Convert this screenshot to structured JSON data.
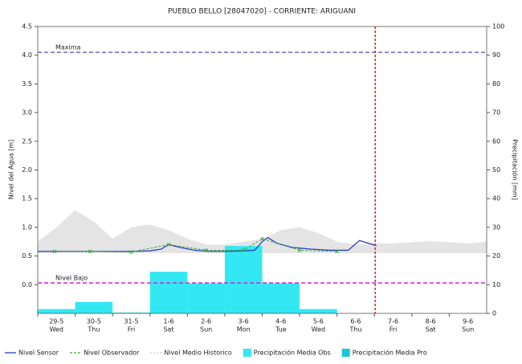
{
  "chart_data": {
    "type": "hydrograph",
    "title": "PUEBLO BELLO [28047020] - CORRIENTE: ARIGUANI",
    "y_label": "Nivel del Agua [m]",
    "y2_label": "Precipitación [mm]",
    "categories": [
      "29-5",
      "30-5",
      "31-5",
      "1-6",
      "2-6",
      "3-6",
      "4-6",
      "5-6",
      "6-6",
      "7-6",
      "8-6",
      "9-6"
    ],
    "weekdays": [
      "Wed",
      "Thu",
      "Fri",
      "Sat",
      "Sun",
      "Mon",
      "Tue",
      "Wed",
      "Thu",
      "Fri",
      "Sat",
      "Sun"
    ],
    "xlim": [
      0,
      12
    ],
    "ylim": [
      -0.5,
      4.5
    ],
    "yticks": [
      {
        "value": 0,
        "label": "0.0"
      },
      {
        "value": 0.5,
        "label": "0.5"
      },
      {
        "value": 1,
        "label": "1.0"
      },
      {
        "value": 1.5,
        "label": "1.5"
      },
      {
        "value": 2,
        "label": "2.0"
      },
      {
        "value": 2.5,
        "label": "2.5"
      },
      {
        "value": 3,
        "label": "3.0"
      },
      {
        "value": 3.5,
        "label": "3.5"
      },
      {
        "value": 4,
        "label": "4.0"
      },
      {
        "value": 4.5,
        "label": "4.5"
      }
    ],
    "y2lim": [
      0,
      100
    ],
    "y2ticks": [
      0,
      10,
      20,
      30,
      40,
      50,
      60,
      70,
      80,
      90,
      100
    ],
    "reference_lines": [
      {
        "label": "Maxima",
        "value": 4.05,
        "color": "#7a62c8"
      },
      {
        "label": "Nivel Bajo",
        "value": 0.03,
        "color": "#d61fd6"
      }
    ],
    "now_line": {
      "x": 9.02,
      "color": "#e02020"
    },
    "series": [
      {
        "name": "Nivel Sensor",
        "kind": "line",
        "color": "#2b3fc4",
        "x": [
          0,
          0.5,
          1,
          1.5,
          2,
          2.5,
          3,
          3.3,
          3.5,
          3.8,
          4.2,
          4.6,
          5,
          5.5,
          5.8,
          6.0,
          6.15,
          6.4,
          6.8,
          7.3,
          7.8,
          8.3,
          8.6,
          9.05
        ],
        "values": [
          0.58,
          0.58,
          0.58,
          0.58,
          0.58,
          0.58,
          0.59,
          0.62,
          0.7,
          0.65,
          0.6,
          0.58,
          0.58,
          0.59,
          0.6,
          0.75,
          0.82,
          0.72,
          0.65,
          0.62,
          0.6,
          0.6,
          0.77,
          0.68
        ]
      },
      {
        "name": "Nivel Observador",
        "kind": "points",
        "color": "#3aa83a",
        "x": [
          0.45,
          1.4,
          2.5,
          3.5,
          4.5,
          5.5,
          6.0,
          7.0,
          8.0
        ],
        "values": [
          0.58,
          0.58,
          0.57,
          0.7,
          0.6,
          0.6,
          0.8,
          0.6,
          0.58
        ]
      },
      {
        "name": "Nivel Medio Historico",
        "kind": "band",
        "color": "#d8d8d8",
        "x": [
          0,
          0.5,
          1,
          1.5,
          2,
          2.5,
          3,
          3.5,
          4,
          4.5,
          5,
          5.5,
          6,
          6.5,
          7,
          7.5,
          8,
          8.5,
          9,
          9.5,
          10,
          10.5,
          11,
          11.5,
          12
        ],
        "values": [
          0.75,
          1.0,
          1.3,
          1.1,
          0.8,
          1.0,
          1.05,
          0.95,
          0.8,
          0.7,
          0.7,
          0.75,
          0.8,
          0.95,
          1.0,
          0.9,
          0.75,
          0.7,
          0.72,
          0.72,
          0.74,
          0.76,
          0.74,
          0.72,
          0.75
        ],
        "lower": [
          0.55,
          0.55,
          0.55,
          0.55,
          0.55,
          0.55,
          0.55,
          0.55,
          0.55,
          0.55,
          0.55,
          0.55,
          0.55,
          0.55,
          0.55,
          0.55,
          0.55,
          0.55,
          0.55,
          0.55,
          0.55,
          0.55,
          0.55,
          0.55,
          0.55
        ]
      },
      {
        "name": "Precipitación Media Obs",
        "kind": "bars",
        "axis": "y2",
        "color": "#33e8f2",
        "values": [
          1.5,
          4,
          0.3,
          14.5,
          10.5,
          23.5,
          10.5,
          1.5,
          null,
          null,
          null,
          null
        ]
      },
      {
        "name": "Precipitación Media Pro",
        "kind": "bars",
        "axis": "y2",
        "color": "#1cc4dc",
        "values": [
          null,
          null,
          null,
          null,
          null,
          null,
          null,
          null,
          null,
          null,
          null,
          null
        ]
      }
    ]
  }
}
